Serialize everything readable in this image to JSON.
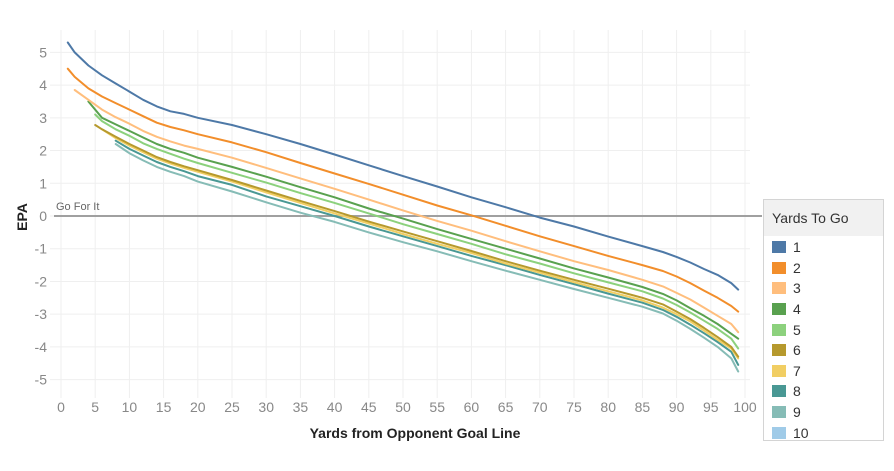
{
  "chart_data": {
    "type": "line",
    "title": "",
    "xlabel": "Yards from Opponent Goal Line",
    "ylabel": "EPA",
    "xlim": [
      0,
      100
    ],
    "ylim": [
      -5.5,
      5.5
    ],
    "xticks": [
      0,
      5,
      10,
      15,
      20,
      25,
      30,
      35,
      40,
      45,
      50,
      55,
      60,
      65,
      70,
      75,
      80,
      85,
      90,
      95,
      100
    ],
    "yticks": [
      -5,
      -4,
      -3,
      -2,
      -1,
      0,
      1,
      2,
      3,
      4,
      5
    ],
    "grid": true,
    "reference_line": {
      "y": 0,
      "label": "Go For It",
      "color": "#a0a0a0"
    },
    "legend": {
      "title": "Yards To Go",
      "placement": "right"
    },
    "series": [
      {
        "name": "1",
        "color": "#4e79a7",
        "x": [
          1,
          2,
          4,
          6,
          8,
          10,
          12,
          14,
          16,
          18,
          20,
          25,
          30,
          35,
          40,
          45,
          50,
          55,
          60,
          65,
          70,
          75,
          80,
          85,
          88,
          90,
          92,
          94,
          96,
          98,
          99
        ],
        "y": [
          5.3,
          5.0,
          4.6,
          4.3,
          4.05,
          3.8,
          3.55,
          3.35,
          3.2,
          3.12,
          3.0,
          2.78,
          2.5,
          2.2,
          1.88,
          1.55,
          1.22,
          0.9,
          0.57,
          0.27,
          -0.05,
          -0.32,
          -0.63,
          -0.92,
          -1.1,
          -1.25,
          -1.42,
          -1.62,
          -1.8,
          -2.05,
          -2.25
        ]
      },
      {
        "name": "2",
        "color": "#f28e2b",
        "x": [
          1,
          2,
          4,
          6,
          8,
          10,
          12,
          14,
          16,
          18,
          20,
          25,
          30,
          35,
          40,
          45,
          50,
          55,
          60,
          65,
          70,
          75,
          80,
          85,
          88,
          90,
          92,
          94,
          96,
          98,
          99
        ],
        "y": [
          4.5,
          4.25,
          3.9,
          3.65,
          3.45,
          3.25,
          3.05,
          2.85,
          2.72,
          2.62,
          2.5,
          2.25,
          1.95,
          1.62,
          1.3,
          0.98,
          0.65,
          0.32,
          0.02,
          -0.3,
          -0.62,
          -0.92,
          -1.22,
          -1.5,
          -1.68,
          -1.85,
          -2.05,
          -2.28,
          -2.5,
          -2.75,
          -2.92
        ]
      },
      {
        "name": "3",
        "color": "#ffbe7d",
        "x": [
          2,
          4,
          6,
          8,
          10,
          12,
          14,
          16,
          18,
          20,
          25,
          30,
          35,
          40,
          45,
          50,
          55,
          60,
          65,
          70,
          75,
          80,
          85,
          88,
          90,
          92,
          94,
          96,
          98,
          99
        ],
        "y": [
          3.85,
          3.55,
          3.25,
          3.02,
          2.82,
          2.6,
          2.42,
          2.28,
          2.15,
          2.05,
          1.78,
          1.47,
          1.15,
          0.83,
          0.5,
          0.17,
          -0.15,
          -0.45,
          -0.77,
          -1.08,
          -1.38,
          -1.65,
          -1.95,
          -2.15,
          -2.35,
          -2.55,
          -2.8,
          -3.05,
          -3.3,
          -3.55
        ]
      },
      {
        "name": "4",
        "color": "#59a14f",
        "x": [
          4,
          6,
          8,
          10,
          12,
          14,
          16,
          18,
          20,
          25,
          30,
          35,
          40,
          45,
          50,
          55,
          60,
          65,
          70,
          75,
          80,
          85,
          88,
          90,
          92,
          94,
          96,
          98,
          99
        ],
        "y": [
          3.5,
          3.0,
          2.8,
          2.6,
          2.4,
          2.2,
          2.05,
          1.93,
          1.78,
          1.5,
          1.2,
          0.88,
          0.57,
          0.23,
          -0.08,
          -0.4,
          -0.7,
          -1.0,
          -1.3,
          -1.6,
          -1.88,
          -2.17,
          -2.38,
          -2.58,
          -2.82,
          -3.05,
          -3.3,
          -3.6,
          -3.75
        ]
      },
      {
        "name": "5",
        "color": "#8cd17d",
        "x": [
          5,
          6,
          8,
          10,
          12,
          14,
          16,
          18,
          20,
          25,
          30,
          35,
          40,
          45,
          50,
          55,
          60,
          65,
          70,
          75,
          80,
          85,
          88,
          90,
          92,
          94,
          96,
          98,
          99
        ],
        "y": [
          3.1,
          2.9,
          2.65,
          2.45,
          2.22,
          2.05,
          1.9,
          1.75,
          1.62,
          1.32,
          1.02,
          0.7,
          0.4,
          0.08,
          -0.25,
          -0.55,
          -0.85,
          -1.17,
          -1.45,
          -1.75,
          -2.03,
          -2.3,
          -2.52,
          -2.72,
          -2.95,
          -3.2,
          -3.45,
          -3.75,
          -4.05
        ]
      },
      {
        "name": "6",
        "color": "#b6992d",
        "x": [
          5,
          6,
          8,
          10,
          12,
          14,
          16,
          18,
          20,
          25,
          30,
          35,
          40,
          45,
          50,
          55,
          60,
          65,
          70,
          75,
          80,
          85,
          88,
          90,
          92,
          94,
          96,
          98,
          99
        ],
        "y": [
          2.78,
          2.65,
          2.42,
          2.2,
          2.0,
          1.8,
          1.65,
          1.52,
          1.4,
          1.1,
          0.78,
          0.46,
          0.15,
          -0.17,
          -0.47,
          -0.77,
          -1.07,
          -1.38,
          -1.67,
          -1.95,
          -2.22,
          -2.5,
          -2.7,
          -2.92,
          -3.15,
          -3.42,
          -3.7,
          -4.0,
          -4.3
        ]
      },
      {
        "name": "7",
        "color": "#f1ce63",
        "x": [
          6,
          8,
          10,
          12,
          14,
          16,
          18,
          20,
          25,
          30,
          35,
          40,
          45,
          50,
          55,
          60,
          65,
          70,
          75,
          80,
          85,
          88,
          90,
          92,
          94,
          96,
          98,
          99
        ],
        "y": [
          2.65,
          2.38,
          2.15,
          1.95,
          1.75,
          1.6,
          1.47,
          1.35,
          1.05,
          0.72,
          0.4,
          0.08,
          -0.23,
          -0.55,
          -0.85,
          -1.13,
          -1.45,
          -1.73,
          -2.02,
          -2.3,
          -2.58,
          -2.8,
          -3.0,
          -3.22,
          -3.5,
          -3.78,
          -4.05,
          -4.35
        ]
      },
      {
        "name": "8",
        "color": "#499894",
        "x": [
          8,
          10,
          12,
          14,
          16,
          18,
          20,
          25,
          30,
          35,
          40,
          45,
          50,
          55,
          60,
          65,
          70,
          75,
          80,
          85,
          88,
          90,
          92,
          94,
          96,
          98,
          99
        ],
        "y": [
          2.3,
          2.05,
          1.85,
          1.65,
          1.5,
          1.37,
          1.22,
          0.95,
          0.6,
          0.3,
          0.0,
          -0.32,
          -0.62,
          -0.92,
          -1.22,
          -1.5,
          -1.8,
          -2.08,
          -2.37,
          -2.65,
          -2.87,
          -3.08,
          -3.32,
          -3.58,
          -3.85,
          -4.15,
          -4.55
        ]
      },
      {
        "name": "9",
        "color": "#86bcb6",
        "x": [
          8,
          10,
          12,
          14,
          16,
          18,
          20,
          25,
          30,
          35,
          40,
          45,
          50,
          55,
          60,
          65,
          70,
          75,
          80,
          85,
          88,
          90,
          92,
          94,
          96,
          98,
          99
        ],
        "y": [
          2.2,
          1.92,
          1.7,
          1.5,
          1.35,
          1.22,
          1.05,
          0.75,
          0.42,
          0.1,
          -0.18,
          -0.5,
          -0.8,
          -1.08,
          -1.38,
          -1.67,
          -1.95,
          -2.23,
          -2.5,
          -2.77,
          -2.98,
          -3.2,
          -3.45,
          -3.72,
          -4.0,
          -4.35,
          -4.75
        ]
      },
      {
        "name": "10",
        "color": "#a0cbe8",
        "x": [],
        "y": []
      }
    ]
  }
}
